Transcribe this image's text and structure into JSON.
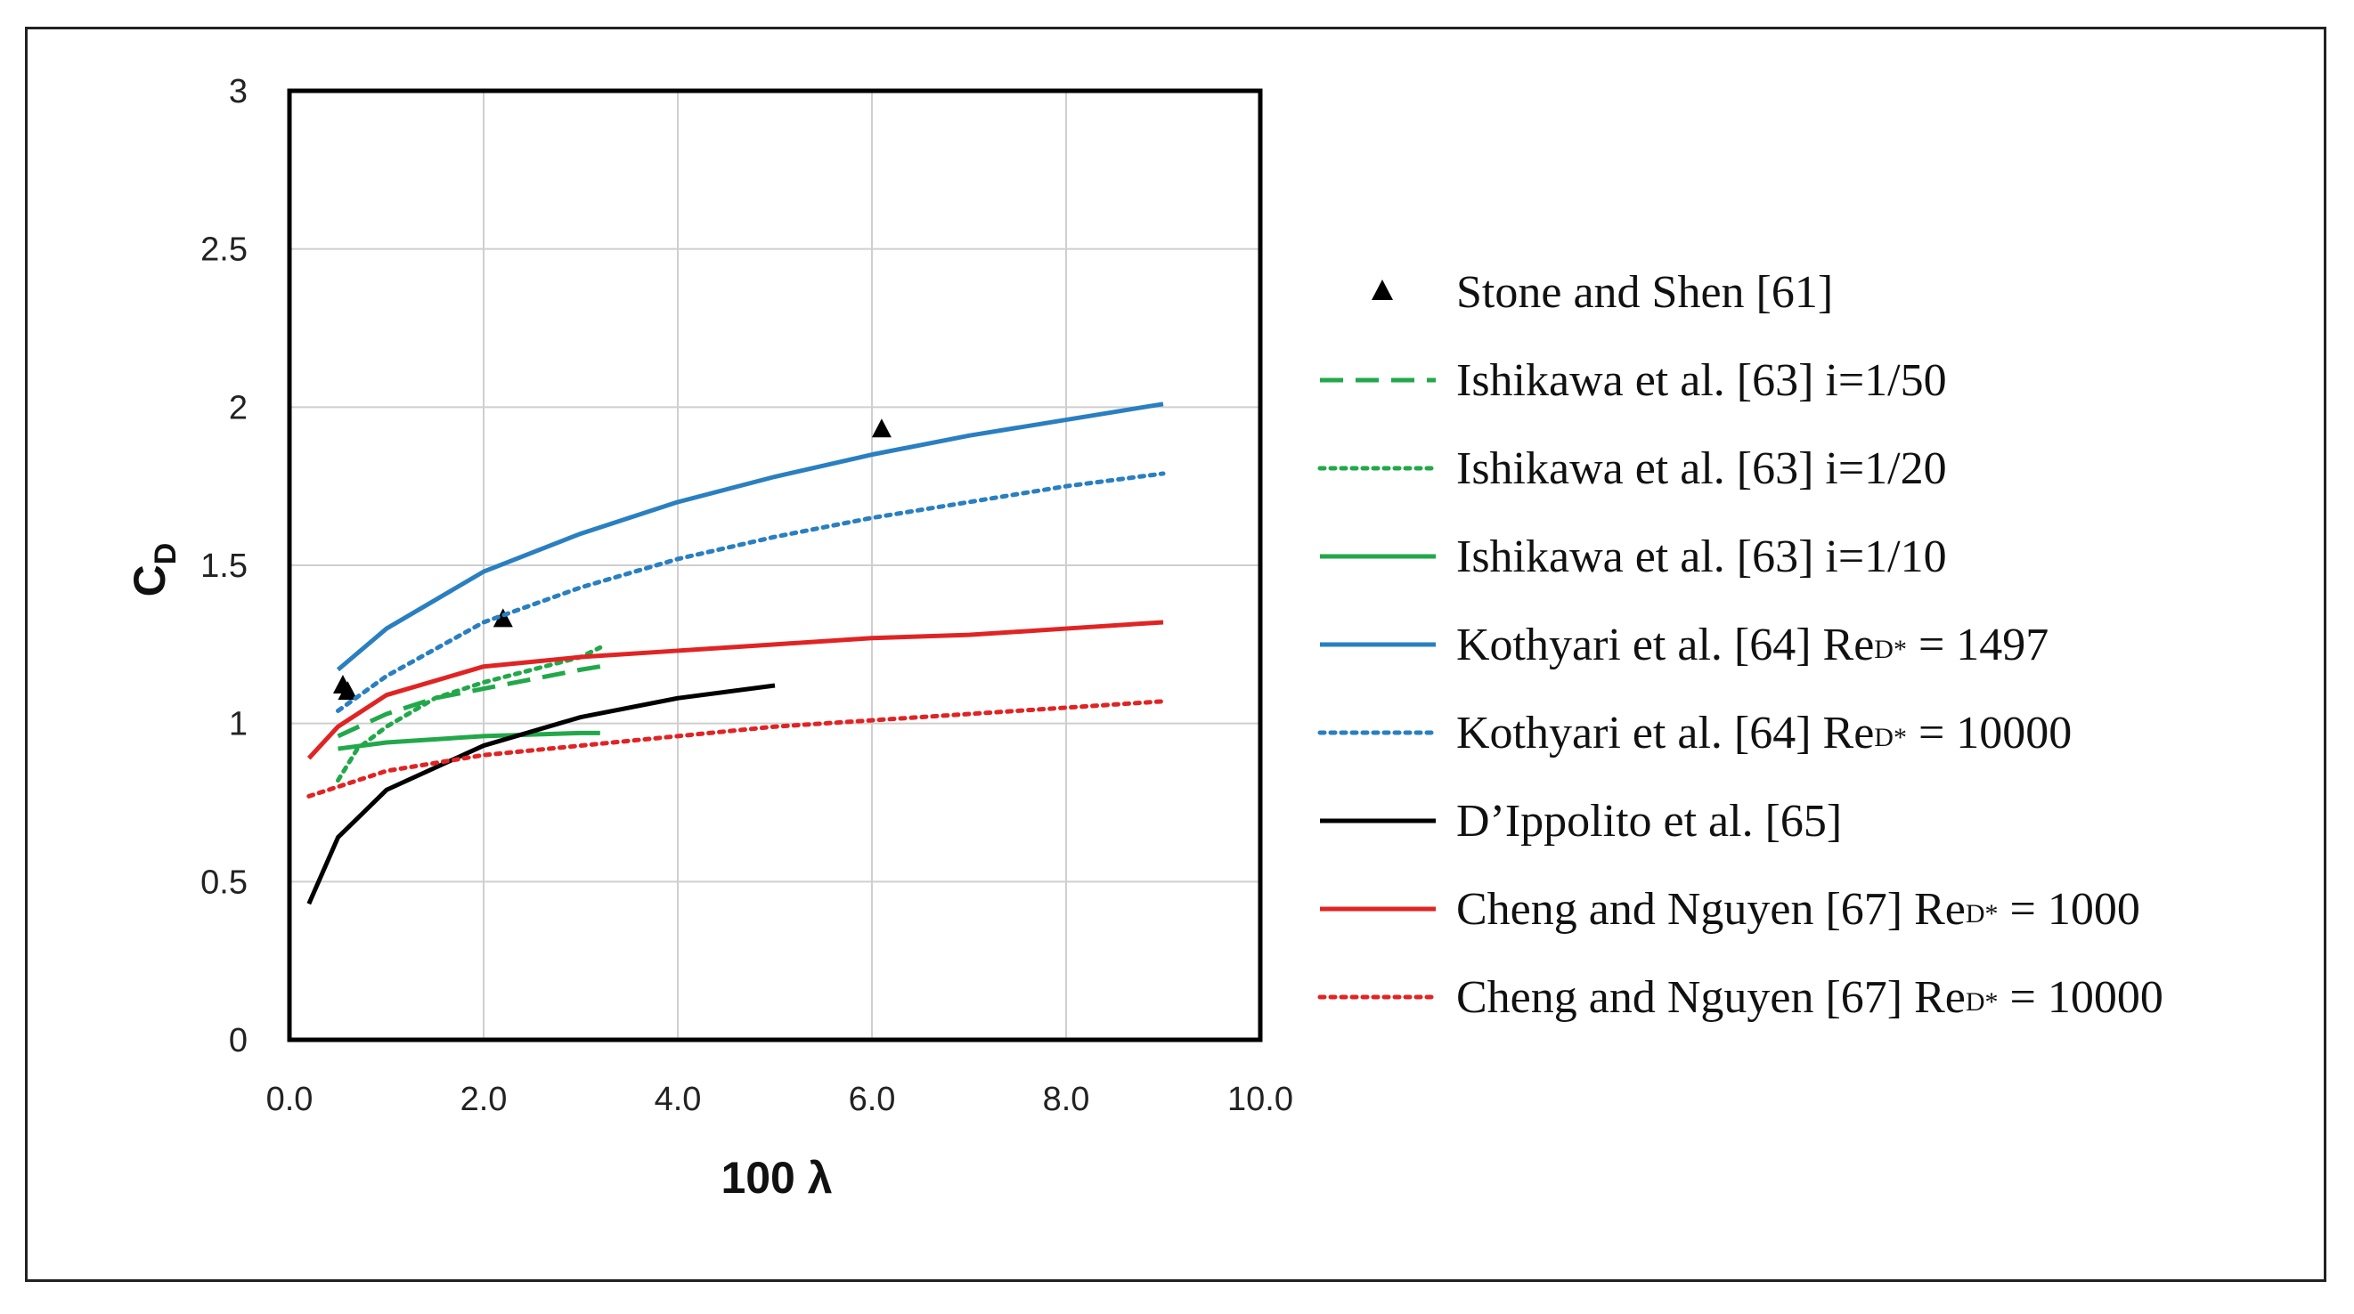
{
  "chart_data": {
    "type": "line",
    "xlabel": "100 λ",
    "ylabel": "C",
    "ylabel_sub": "D",
    "xlim": [
      0,
      10
    ],
    "ylim": [
      0,
      3
    ],
    "x_ticks": [
      "0.0",
      "2.0",
      "4.0",
      "6.0",
      "8.0",
      "10.0"
    ],
    "y_ticks": [
      "0",
      "0.5",
      "1",
      "1.5",
      "2",
      "2.5",
      "3"
    ],
    "grid": true,
    "legend_position": "right",
    "series": [
      {
        "name": "Stone and Shen [61]",
        "style": "marker",
        "color": "#000000",
        "x": [
          0.55,
          0.6,
          2.2,
          6.1
        ],
        "y": [
          1.12,
          1.1,
          1.33,
          1.93
        ]
      },
      {
        "name": "Ishikawa et al. [63] i=1/50",
        "style": "dashed",
        "color": "#22a84a",
        "x": [
          0.5,
          1,
          1.5,
          2,
          2.5,
          3,
          3.2
        ],
        "y": [
          0.96,
          1.03,
          1.08,
          1.11,
          1.14,
          1.17,
          1.18
        ]
      },
      {
        "name": "Ishikawa et al. [63] i=1/20",
        "style": "dotted",
        "color": "#22a84a",
        "x": [
          0.5,
          0.7,
          1,
          1.5,
          2,
          2.5,
          3,
          3.2
        ],
        "y": [
          0.82,
          0.92,
          0.99,
          1.08,
          1.13,
          1.17,
          1.21,
          1.24
        ]
      },
      {
        "name": "Ishikawa et al. [63] i=1/10",
        "style": "solid",
        "color": "#22a84a",
        "x": [
          0.5,
          1,
          2,
          3,
          3.2
        ],
        "y": [
          0.92,
          0.94,
          0.96,
          0.97,
          0.97
        ]
      },
      {
        "name": "Kothyari et al. [64] ReD* = 1497",
        "style": "solid",
        "color": "#2a7fc1",
        "x": [
          0.5,
          1,
          2,
          3,
          4,
          5,
          6,
          7,
          8,
          9
        ],
        "y": [
          1.17,
          1.3,
          1.48,
          1.6,
          1.7,
          1.78,
          1.85,
          1.91,
          1.96,
          2.01
        ]
      },
      {
        "name": "Kothyari et al. [64] ReD* = 10000",
        "style": "dotted",
        "color": "#2a7fc1",
        "x": [
          0.5,
          1,
          2,
          3,
          4,
          5,
          6,
          7,
          8,
          9
        ],
        "y": [
          1.04,
          1.15,
          1.32,
          1.43,
          1.52,
          1.59,
          1.65,
          1.7,
          1.75,
          1.79
        ]
      },
      {
        "name": "D’Ippolito et al. [65]",
        "style": "solid",
        "color": "#000000",
        "x": [
          0.2,
          0.5,
          1,
          2,
          3,
          4,
          5
        ],
        "y": [
          0.43,
          0.64,
          0.79,
          0.93,
          1.02,
          1.08,
          1.12
        ]
      },
      {
        "name": "Cheng and Nguyen [67] ReD* = 1000",
        "style": "solid",
        "color": "#e02424",
        "x": [
          0.2,
          0.5,
          1,
          2,
          3,
          4,
          5,
          6,
          7,
          8,
          9
        ],
        "y": [
          0.89,
          0.99,
          1.09,
          1.18,
          1.21,
          1.23,
          1.25,
          1.27,
          1.28,
          1.3,
          1.32
        ]
      },
      {
        "name": "Cheng and Nguyen [67] ReD* = 10000",
        "style": "dotted",
        "color": "#e02424",
        "x": [
          0.2,
          1,
          2,
          3,
          4,
          5,
          6,
          7,
          8,
          9
        ],
        "y": [
          0.77,
          0.85,
          0.9,
          0.93,
          0.96,
          0.99,
          1.01,
          1.03,
          1.05,
          1.07
        ]
      }
    ],
    "legend": [
      {
        "main": "Stone and Shen [61]",
        "sub": "",
        "tail": ""
      },
      {
        "main": "Ishikawa et al. [63] i=1/50",
        "sub": "",
        "tail": ""
      },
      {
        "main": "Ishikawa et al. [63] i=1/20",
        "sub": "",
        "tail": ""
      },
      {
        "main": "Ishikawa et al. [63] i=1/10",
        "sub": "",
        "tail": ""
      },
      {
        "main": "Kothyari et al. [64] Re",
        "sub": "D*",
        "tail": " = 1497"
      },
      {
        "main": "Kothyari et al. [64] Re",
        "sub": "D*",
        "tail": " = 10000"
      },
      {
        "main": "D’Ippolito et al. [65]",
        "sub": "",
        "tail": ""
      },
      {
        "main": "Cheng and Nguyen [67] Re",
        "sub": "D*",
        "tail": " = 1000"
      },
      {
        "main": "Cheng and Nguyen [67] Re",
        "sub": "D*",
        "tail": " = 10000"
      }
    ]
  }
}
